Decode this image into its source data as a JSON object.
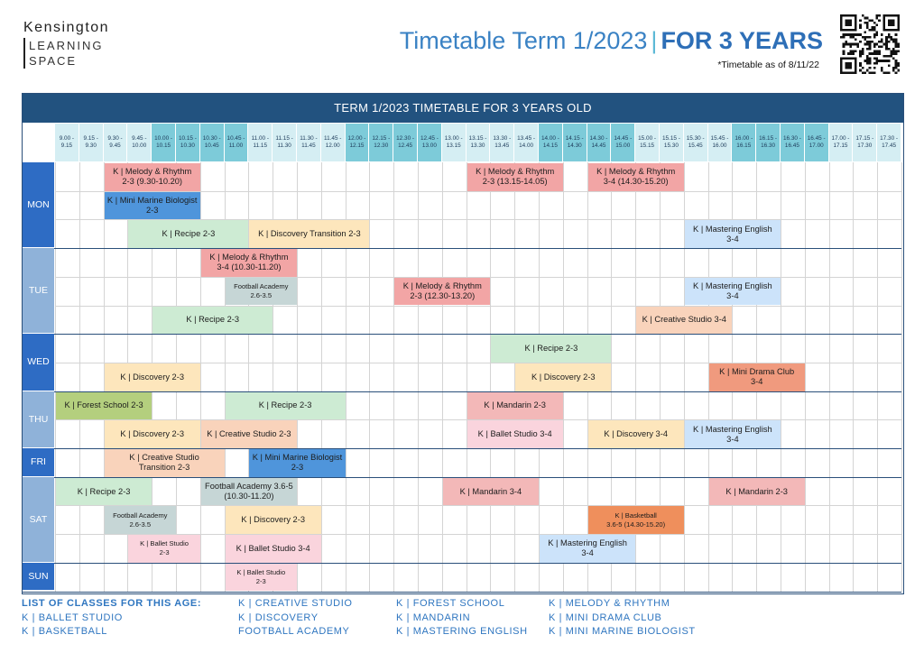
{
  "logo": {
    "brand": "Kensington",
    "line1": "LEARNING",
    "line2": "SPACE"
  },
  "header": {
    "title_part1": "Timetable Term 1/2023",
    "title_separator": "|",
    "title_part2": "FOR 3 YEARS",
    "as_of": "*Timetable as of 8/11/22"
  },
  "timetable": {
    "heading": "TERM 1/2023 TIMETABLE FOR 3 YEARS OLD",
    "slots": [
      "9.00 -\n9.15",
      "9.15 -\n9.30",
      "9.30 -\n9.45",
      "9.45 -\n10.00",
      "10.00 -\n10.15",
      "10.15 -\n10.30",
      "10.30 -\n10.45",
      "10.45 -\n11.00",
      "11.00 -\n11.15",
      "11.15 -\n11.30",
      "11.30 -\n11.45",
      "11.45 -\n12.00",
      "12.00 -\n12.15",
      "12.15 -\n12.30",
      "12.30 -\n12.45",
      "12.45 -\n13.00",
      "13.00 -\n13.15",
      "13.15 -\n13.30",
      "13.30 -\n13.45",
      "13.45 -\n14.00",
      "14.00 -\n14.15",
      "14.15 -\n14.30",
      "14.30 -\n14.45",
      "14.45 -\n15.00",
      "15.00 -\n15.15",
      "15.15 -\n15.30",
      "15.30 -\n15.45",
      "15.45 -\n16.00",
      "16.00 -\n16.15",
      "16.15 -\n16.30",
      "16.30 -\n16.45",
      "16.45 -\n17.00",
      "17.00 -\n17.15",
      "17.15 -\n17.30",
      "17.30 -\n17.45"
    ],
    "days": [
      {
        "label": "MON",
        "rows": 3
      },
      {
        "label": "TUE",
        "rows": 3
      },
      {
        "label": "WED",
        "rows": 2
      },
      {
        "label": "THU",
        "rows": 2
      },
      {
        "label": "FRI",
        "rows": 1
      },
      {
        "label": "SAT",
        "rows": 3
      },
      {
        "label": "SUN",
        "rows": 1
      }
    ],
    "classes": [
      {
        "label": "K | Melody & Rhythm\n2-3 (9.30-10.20)",
        "row": 0,
        "start": 2,
        "span": 4,
        "color": "#f2a5a5"
      },
      {
        "label": "K | Melody & Rhythm\n2-3 (13.15-14.05)",
        "row": 0,
        "start": 17,
        "span": 4,
        "color": "#f2a5a5"
      },
      {
        "label": "K | Melody & Rhythm\n3-4 (14.30-15.20)",
        "row": 0,
        "start": 22,
        "span": 4,
        "color": "#f2a5a5"
      },
      {
        "label": "K | Mini Marine Biologist\n2-3",
        "row": 1,
        "start": 2,
        "span": 4,
        "color": "#4f95db"
      },
      {
        "label": "K | Recipe 2-3",
        "row": 2,
        "start": 3,
        "span": 5,
        "color": "#cdebd3"
      },
      {
        "label": "K | Discovery Transition 2-3",
        "row": 2,
        "start": 8,
        "span": 5,
        "color": "#fde6bc"
      },
      {
        "label": "K | Mastering English\n3-4",
        "row": 2,
        "start": 26,
        "span": 4,
        "color": "#cce3fa"
      },
      {
        "label": "K | Melody & Rhythm\n3-4 (10.30-11.20)",
        "row": 3,
        "start": 6,
        "span": 4,
        "color": "#f2a5a5"
      },
      {
        "label": "Football Academy\n2.6-3.5",
        "row": 4,
        "start": 7,
        "span": 3,
        "color": "#c6d6d6",
        "small": true
      },
      {
        "label": "K | Melody & Rhythm\n2-3 (12.30-13.20)",
        "row": 4,
        "start": 14,
        "span": 4,
        "color": "#f2a5a5"
      },
      {
        "label": "K | Mastering English\n3-4",
        "row": 4,
        "start": 26,
        "span": 4,
        "color": "#cce3fa"
      },
      {
        "label": "K | Recipe 2-3",
        "row": 5,
        "start": 4,
        "span": 5,
        "color": "#cdebd3"
      },
      {
        "label": "K | Creative Studio 3-4",
        "row": 5,
        "start": 24,
        "span": 4,
        "color": "#f9d3bb"
      },
      {
        "label": "K | Recipe 2-3",
        "row": 6,
        "start": 18,
        "span": 5,
        "color": "#cdebd3"
      },
      {
        "label": "K | Discovery 2-3",
        "row": 7,
        "start": 2,
        "span": 4,
        "color": "#fde6bc"
      },
      {
        "label": "K | Discovery 2-3",
        "row": 7,
        "start": 19,
        "span": 4,
        "color": "#fde6bc"
      },
      {
        "label": "K | Mini Drama Club\n3-4",
        "row": 7,
        "start": 27,
        "span": 4,
        "color": "#f09a7e"
      },
      {
        "label": "K | Forest School 2-3",
        "row": 8,
        "start": 0,
        "span": 4,
        "color": "#b4cf7e"
      },
      {
        "label": "K | Recipe 2-3",
        "row": 8,
        "start": 7,
        "span": 5,
        "color": "#cdebd3"
      },
      {
        "label": "K | Mandarin 2-3",
        "row": 8,
        "start": 17,
        "span": 4,
        "color": "#f3b8b8"
      },
      {
        "label": "K | Discovery 2-3",
        "row": 9,
        "start": 2,
        "span": 4,
        "color": "#fde6bc"
      },
      {
        "label": "K | Creative Studio 2-3",
        "row": 9,
        "start": 6,
        "span": 4,
        "color": "#f9d3bb"
      },
      {
        "label": "K | Ballet Studio 3-4",
        "row": 9,
        "start": 17,
        "span": 4,
        "color": "#fad4dd"
      },
      {
        "label": "K | Discovery 3-4",
        "row": 9,
        "start": 22,
        "span": 4,
        "color": "#fde6bc"
      },
      {
        "label": "K | Mastering English\n3-4",
        "row": 9,
        "start": 26,
        "span": 4,
        "color": "#cce3fa"
      },
      {
        "label": "K | Creative Studio\nTransition 2-3",
        "row": 10,
        "start": 2,
        "span": 5,
        "color": "#f9d3bb"
      },
      {
        "label": "K | Mini Marine Biologist\n2-3",
        "row": 10,
        "start": 8,
        "span": 4,
        "color": "#4f95db"
      },
      {
        "label": "K | Recipe 2-3",
        "row": 11,
        "start": 0,
        "span": 4,
        "color": "#cdebd3"
      },
      {
        "label": "Football Academy 3.6-5\n(10.30-11.20)",
        "row": 11,
        "start": 6,
        "span": 4,
        "color": "#c6d6d6"
      },
      {
        "label": "K | Mandarin  3-4",
        "row": 11,
        "start": 16,
        "span": 4,
        "color": "#f3b8b8"
      },
      {
        "label": "K | Mandarin 2-3",
        "row": 11,
        "start": 27,
        "span": 4,
        "color": "#f3b8b8"
      },
      {
        "label": "Football Academy\n2.6-3.5",
        "row": 12,
        "start": 2,
        "span": 3,
        "color": "#c6d6d6",
        "small": true
      },
      {
        "label": "K | Discovery 2-3",
        "row": 12,
        "start": 7,
        "span": 4,
        "color": "#fde6bc"
      },
      {
        "label": "K | Basketball\n3.6-5 (14.30-15.20)",
        "row": 12,
        "start": 22,
        "span": 4,
        "color": "#ef8f5c",
        "small": true
      },
      {
        "label": "K | Ballet Studio\n2-3",
        "row": 13,
        "start": 3,
        "span": 3,
        "color": "#fad4dd",
        "small": true
      },
      {
        "label": "K | Ballet Studio 3-4",
        "row": 13,
        "start": 7,
        "span": 4,
        "color": "#fad4dd"
      },
      {
        "label": "K | Mastering English\n3-4",
        "row": 13,
        "start": 20,
        "span": 4,
        "color": "#cce3fa"
      },
      {
        "label": "K | Ballet Studio\n2-3",
        "row": 14,
        "start": 7,
        "span": 3,
        "color": "#fad4dd",
        "small": true
      }
    ]
  },
  "legend": {
    "heading": "LIST OF CLASSES FOR THIS AGE:",
    "columns": [
      [
        "K | BALLET STUDIO",
        "K | BASKETBALL"
      ],
      [
        "K | CREATIVE STUDIO",
        "K | DISCOVERY",
        "FOOTBALL ACADEMY"
      ],
      [
        "K | FOREST SCHOOL",
        "K | MANDARIN",
        "K | MASTERING ENGLISH"
      ],
      [
        "K | MELODY & RHYTHM",
        "K | MINI DRAMA CLUB",
        "K | MINI MARINE BIOLOGIST"
      ]
    ]
  }
}
